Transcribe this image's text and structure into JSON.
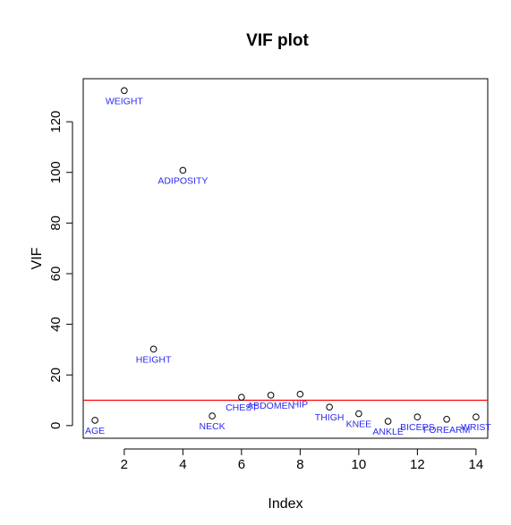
{
  "chart_data": {
    "type": "scatter",
    "title": "VIF plot",
    "xlabel": "Index",
    "ylabel": "VIF",
    "xlim": [
      0.6,
      14.4
    ],
    "ylim": [
      -5,
      137
    ],
    "x_ticks": [
      2,
      4,
      6,
      8,
      10,
      12,
      14
    ],
    "y_ticks": [
      0,
      20,
      40,
      60,
      80,
      100,
      120
    ],
    "grid": false,
    "legend": "none",
    "reference_line": {
      "y": 10,
      "color": "#ff0000"
    },
    "point_label_color": "#2b2bf0",
    "points": [
      {
        "x": 1,
        "y": 2.1,
        "label": "AGE"
      },
      {
        "x": 2,
        "y": 132.3,
        "label": "WEIGHT"
      },
      {
        "x": 3,
        "y": 30.2,
        "label": "HEIGHT"
      },
      {
        "x": 4,
        "y": 100.8,
        "label": "ADIPOSITY"
      },
      {
        "x": 5,
        "y": 3.8,
        "label": "NECK"
      },
      {
        "x": 6,
        "y": 11.2,
        "label": "CHEST"
      },
      {
        "x": 7,
        "y": 12.0,
        "label": "ABDOMEN"
      },
      {
        "x": 8,
        "y": 12.4,
        "label": "HIP"
      },
      {
        "x": 9,
        "y": 7.3,
        "label": "THIGH"
      },
      {
        "x": 10,
        "y": 4.7,
        "label": "KNEE"
      },
      {
        "x": 11,
        "y": 1.7,
        "label": "ANKLE"
      },
      {
        "x": 12,
        "y": 3.4,
        "label": "BICEPS"
      },
      {
        "x": 13,
        "y": 2.5,
        "label": "FOREARM"
      },
      {
        "x": 14,
        "y": 3.4,
        "label": "WRIST"
      }
    ]
  }
}
